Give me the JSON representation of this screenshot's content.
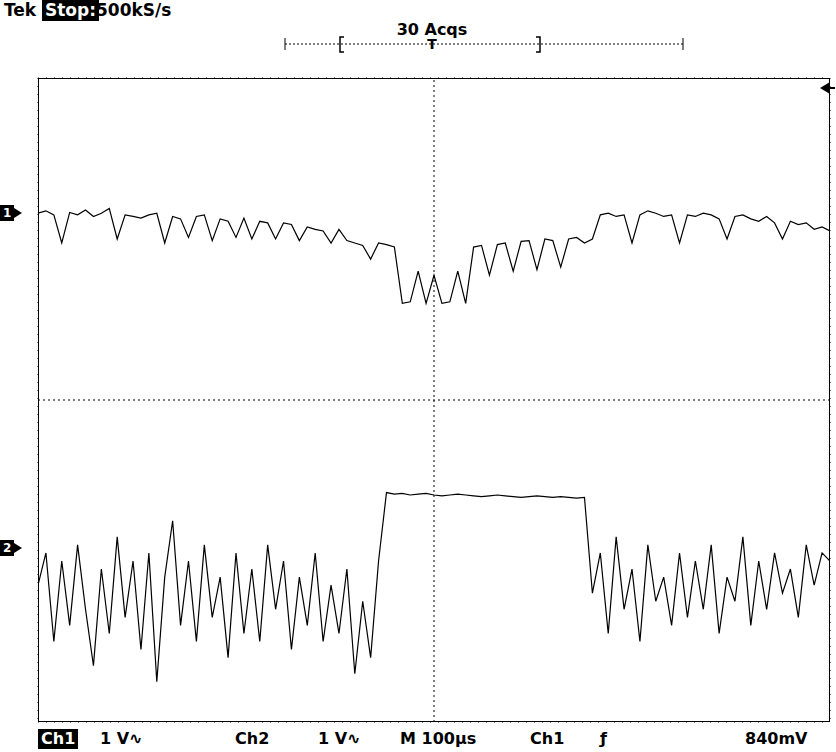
{
  "chart_data": {
    "type": "line",
    "grid": true,
    "tick_labels": false,
    "annotations": [
      "Tek",
      "Stop:",
      "500kS/s",
      "30 Acqs",
      "T",
      "Ch1",
      "1 V∿",
      "Ch2",
      "1 V∿",
      "M 100µs",
      "Ch1",
      "ƒ",
      "840mV"
    ],
    "x": [
      0,
      10,
      20,
      30,
      40,
      50,
      60,
      70,
      80,
      90,
      100,
      110,
      120,
      130,
      140,
      150,
      160,
      170,
      180,
      190,
      200,
      210,
      220,
      230,
      240,
      250,
      260,
      270,
      280,
      290,
      300,
      310,
      320,
      330,
      340,
      350,
      360,
      370,
      380,
      390,
      400,
      410,
      420,
      430,
      440,
      450,
      460,
      470,
      480,
      490,
      500,
      510,
      520,
      530,
      540,
      550,
      560,
      570,
      580,
      590,
      600,
      610,
      620,
      630,
      640,
      650,
      660,
      670,
      680,
      690,
      700,
      710,
      720,
      730,
      740,
      750,
      760,
      770,
      780,
      790,
      800,
      810,
      820,
      830,
      840,
      850,
      860,
      870,
      880,
      890,
      900,
      910,
      920,
      930,
      940,
      950,
      960,
      970,
      980,
      990,
      1000
    ],
    "xlim": [
      0,
      1000
    ],
    "xticks": [
      0,
      100,
      200,
      300,
      400,
      500,
      600,
      700,
      800,
      900,
      1000
    ],
    "ylim": [
      -4,
      4
    ],
    "yticks": [
      -4,
      -3,
      -2,
      -1,
      0,
      1,
      2,
      3,
      4
    ],
    "series": [
      {
        "name": "1",
        "color": "#000000",
        "marker": "none",
        "values": [
          2.32,
          2.35,
          2.3,
          1.95,
          2.33,
          2.3,
          2.36,
          2.28,
          2.32,
          2.38,
          2.0,
          2.3,
          2.28,
          2.26,
          2.3,
          2.32,
          1.95,
          2.28,
          2.25,
          2.02,
          2.28,
          2.3,
          1.98,
          2.25,
          2.22,
          2.02,
          2.26,
          2.0,
          2.22,
          2.2,
          2.0,
          2.2,
          2.18,
          1.98,
          2.15,
          2.12,
          2.1,
          1.95,
          2.12,
          1.98,
          1.95,
          1.92,
          1.75,
          1.95,
          1.93,
          1.9,
          1.2,
          1.22,
          1.6,
          1.2,
          1.55,
          1.2,
          1.22,
          1.6,
          1.2,
          1.9,
          1.92,
          1.55,
          1.93,
          1.95,
          1.6,
          1.97,
          1.98,
          1.62,
          2.0,
          1.98,
          1.65,
          2.0,
          2.02,
          1.95,
          2.0,
          2.3,
          2.32,
          2.28,
          2.3,
          1.95,
          2.3,
          2.35,
          2.32,
          2.28,
          2.3,
          1.95,
          2.3,
          2.28,
          2.32,
          2.3,
          2.25,
          2.0,
          2.28,
          2.3,
          2.25,
          2.22,
          2.28,
          2.2,
          2.0,
          2.22,
          2.18,
          2.2,
          2.12,
          2.15,
          2.1
        ]
      },
      {
        "name": "2",
        "color": "#000000",
        "marker": "none",
        "values": [
          -2.3,
          -1.9,
          -3.0,
          -2.0,
          -2.8,
          -1.8,
          -2.6,
          -3.3,
          -2.1,
          -2.9,
          -1.7,
          -2.7,
          -2.0,
          -3.1,
          -1.9,
          -3.5,
          -2.2,
          -1.5,
          -2.8,
          -2.0,
          -3.0,
          -1.8,
          -2.7,
          -2.2,
          -3.2,
          -1.9,
          -2.9,
          -2.1,
          -3.0,
          -1.8,
          -2.6,
          -2.0,
          -3.1,
          -2.2,
          -2.8,
          -1.9,
          -3.0,
          -2.3,
          -2.9,
          -2.1,
          -3.4,
          -2.5,
          -3.2,
          -2.0,
          -1.15,
          -1.17,
          -1.16,
          -1.18,
          -1.17,
          -1.16,
          -1.18,
          -1.19,
          -1.18,
          -1.17,
          -1.18,
          -1.19,
          -1.2,
          -1.19,
          -1.18,
          -1.19,
          -1.2,
          -1.21,
          -1.2,
          -1.19,
          -1.2,
          -1.21,
          -1.2,
          -1.21,
          -1.22,
          -1.21,
          -2.4,
          -1.9,
          -2.9,
          -1.7,
          -2.6,
          -2.1,
          -3.0,
          -1.8,
          -2.5,
          -2.2,
          -2.8,
          -1.9,
          -2.7,
          -2.0,
          -2.6,
          -1.8,
          -2.9,
          -2.2,
          -2.5,
          -1.7,
          -2.8,
          -2.0,
          -2.6,
          -1.9,
          -2.4,
          -2.1,
          -2.7,
          -1.8,
          -2.3,
          -1.9,
          -2.0
        ]
      }
    ]
  }
}
